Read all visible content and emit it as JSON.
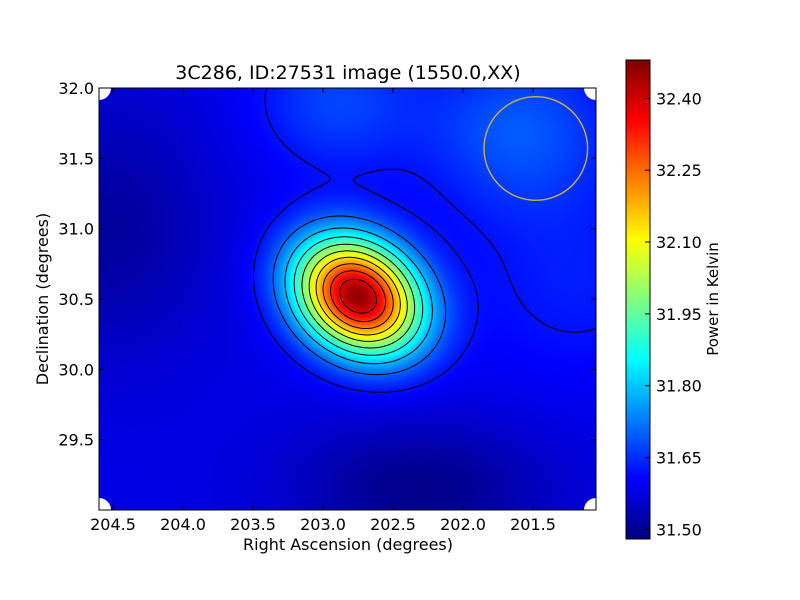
{
  "chart_data": {
    "type": "heatmap",
    "title": "3C286, ID:27531 image (1550.0,XX)",
    "xlabel": "Right Ascension (degrees)",
    "ylabel": "Declination (degrees)",
    "xlim": [
      204.6,
      201.05
    ],
    "ylim": [
      29.0,
      32.0
    ],
    "x_ticks": [
      "204.5",
      "204.0",
      "203.5",
      "203.0",
      "202.5",
      "202.0",
      "201.5"
    ],
    "x_tick_values": [
      204.5,
      204.0,
      203.5,
      203.0,
      202.5,
      202.0,
      201.5
    ],
    "y_ticks": [
      "29.5",
      "30.0",
      "30.5",
      "31.0",
      "31.5",
      "32.0"
    ],
    "y_tick_values": [
      29.5,
      30.0,
      30.5,
      31.0,
      31.5,
      32.0
    ],
    "colorbar": {
      "label": "Power in Kelvin",
      "range": [
        31.48,
        32.48
      ],
      "ticks": [
        "32.40",
        "32.25",
        "32.10",
        "31.95",
        "31.80",
        "31.65",
        "31.50"
      ],
      "tick_values": [
        32.4,
        32.25,
        32.1,
        31.95,
        31.8,
        31.65,
        31.5
      ],
      "colormap": "jet"
    },
    "source": {
      "ra": 202.75,
      "dec": 30.52,
      "peak_kelvin": 32.46
    },
    "beam_circle": {
      "ra": 201.48,
      "dec": 31.57,
      "radius_deg": 0.37,
      "color": "#c8b43c"
    },
    "contour_color": "#000000"
  }
}
